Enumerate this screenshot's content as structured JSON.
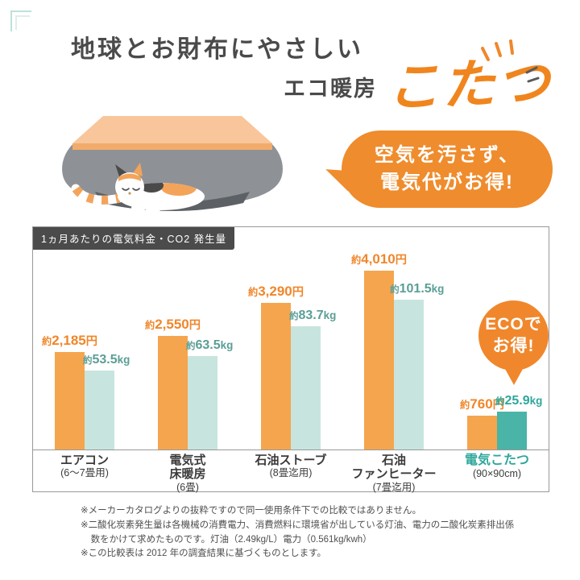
{
  "header": {
    "title": "地球とお財布にやさしい",
    "subtitle": "エコ暖房",
    "product": "こたつ"
  },
  "speech_bubble": {
    "line1": "空気を汚さず、",
    "line2": "電気代がお得!"
  },
  "chart_data": {
    "type": "bar",
    "title": "1ヵ月あたりの電気料金・CO2 発生量",
    "series": [
      {
        "name": "電気料金",
        "unit": "円",
        "color": "#f5a54e"
      },
      {
        "name": "CO2発生量",
        "unit": "kg",
        "color": "#c7e5de",
        "highlight_color": "#49b4a7"
      }
    ],
    "groups": [
      {
        "name": "エアコン",
        "size": "(6〜7畳用)",
        "cost": 2185,
        "cost_label": "約2,185円",
        "co2": 53.5,
        "co2_label": "約53.5kg",
        "highlight": false
      },
      {
        "name": "電気式\n床暖房",
        "size": "(6畳)",
        "cost": 2550,
        "cost_label": "約2,550円",
        "co2": 63.5,
        "co2_label": "約63.5kg",
        "highlight": false
      },
      {
        "name": "石油ストーブ",
        "size": "(8畳迄用)",
        "cost": 3290,
        "cost_label": "約3,290円",
        "co2": 83.7,
        "co2_label": "約83.7kg",
        "highlight": false
      },
      {
        "name": "石油\nファンヒーター",
        "size": "(7畳迄用)",
        "cost": 4010,
        "cost_label": "約4,010円",
        "co2": 101.5,
        "co2_label": "約101.5kg",
        "highlight": false
      },
      {
        "name": "電気こたつ",
        "size": "(90×90cm)",
        "cost": 760,
        "cost_label": "約760円",
        "co2": 25.9,
        "co2_label": "約25.9kg",
        "highlight": true
      }
    ],
    "badge": {
      "line1": "ECOで",
      "line2": "お得!"
    }
  },
  "footnotes": [
    "※メーカーカタログよりの抜粋ですので同一使用条件下での比較ではありません。",
    "※二酸化炭素発生量は各機械の消費電力、消費燃料に環境省が出している灯油、電力の二酸化炭素排出係数をかけて求めたものです。灯油（2.49kg/L）電力（0.561kg/kwh）",
    "※この比較表は 2012 年の調査結果に基づくものとします。"
  ],
  "colors": {
    "orange_accent": "#f0872c",
    "bar_orange": "#f5a54e",
    "bar_teal_light": "#c7e5de",
    "bar_teal_dark": "#49b4a7",
    "text_dark": "#4a4a4a",
    "teal_text": "#2fa79b"
  }
}
